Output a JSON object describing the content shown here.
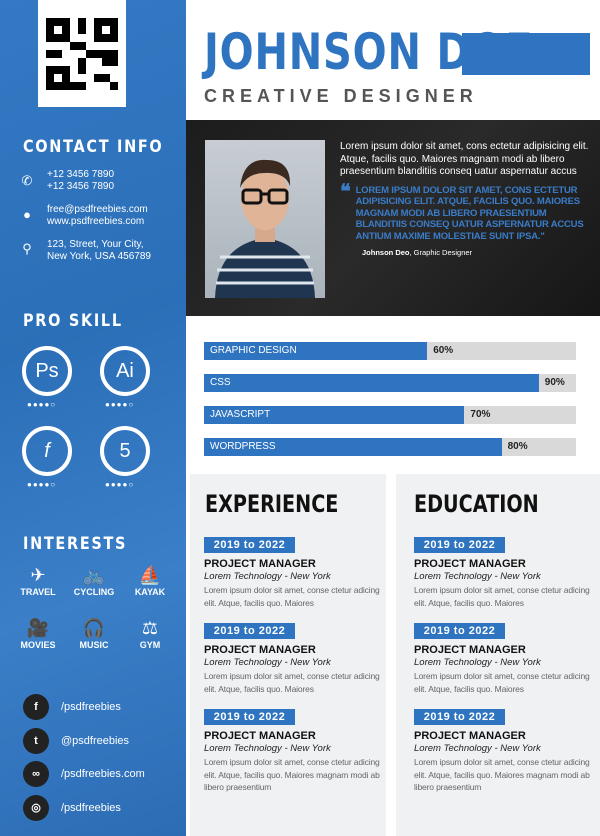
{
  "header": {
    "name": "JOHNSON DOE",
    "title": "CREATIVE DESIGNER"
  },
  "contact": {
    "heading": "CONTACT INFO",
    "phone1": "+12 3456 7890",
    "phone2": "+12 3456 7890",
    "email": "free@psdfreebies.com",
    "website": "www.psdfreebies.com",
    "address1": "123, Street, Your City,",
    "address2": "New York, USA 456789"
  },
  "pro_skill": {
    "heading": "PRO SKILL",
    "items": [
      {
        "icon": "photoshop-icon",
        "label": "Ps",
        "rating": 4,
        "max": 5
      },
      {
        "icon": "illustrator-icon",
        "label": "Ai",
        "rating": 4,
        "max": 5
      },
      {
        "icon": "flash-icon",
        "label": "f",
        "rating": 4,
        "max": 5
      },
      {
        "icon": "html5-icon",
        "label": "5",
        "rating": 4,
        "max": 5
      }
    ]
  },
  "interests": {
    "heading": "INTERESTS",
    "items": [
      {
        "icon": "plane-icon",
        "label": "TRAVEL"
      },
      {
        "icon": "bicycle-icon",
        "label": "CYCLING"
      },
      {
        "icon": "kayak-icon",
        "label": "KAYAK"
      },
      {
        "icon": "video-camera-icon",
        "label": "MOVIES"
      },
      {
        "icon": "headphones-icon",
        "label": "MUSIC"
      },
      {
        "icon": "dumbbell-icon",
        "label": "GYM"
      }
    ]
  },
  "social": [
    {
      "icon": "facebook-icon",
      "label": "/psdfreebies"
    },
    {
      "icon": "twitter-icon",
      "label": "@psdfreebies"
    },
    {
      "icon": "link-icon",
      "label": "/psdfreebies.com"
    },
    {
      "icon": "dribbble-icon",
      "label": "/psdfreebies"
    }
  ],
  "about": {
    "intro": "Lorem ipsum dolor sit amet, cons ectetur adipisicing elit. Atque, facilis quo. Maiores magnam modi ab libero praesentium blanditiis conseq uatur aspernatur accus",
    "quote": "LOREM IPSUM DOLOR SIT AMET, CONS ECTETUR ADIPISICING ELIT. ATQUE, FACILIS QUO. MAIORES MAGNAM MODI AB LIBERO PRAESENTIUM BLANDITIIS CONSEQ UATUR ASPERNATUR ACCUS ANTIUM MAXIME MOLESTIAE SUNT IPSA.\"",
    "sig_name": "Johnson Deo",
    "sig_role": ", Graphic Designer"
  },
  "skills": [
    {
      "label": "GRAPHIC DESIGN",
      "percent": 60,
      "text": "60%"
    },
    {
      "label": "CSS",
      "percent": 90,
      "text": "90%"
    },
    {
      "label": "JAVASCRIPT",
      "percent": 70,
      "text": "70%"
    },
    {
      "label": "WORDPRESS",
      "percent": 80,
      "text": "80%"
    }
  ],
  "experience": {
    "heading": "EXPERIENCE",
    "entries": [
      {
        "date": "2019 to 2022",
        "role": "PROJECT MANAGER",
        "company": "Lorem Technology - New York",
        "desc": "Lorem ipsum dolor sit amet, conse ctetur adicing elit. Atque, facilis quo. Maiores"
      },
      {
        "date": "2019 to 2022",
        "role": "PROJECT MANAGER",
        "company": "Lorem Technology - New York",
        "desc": "Lorem ipsum dolor sit amet, conse ctetur adicing elit. Atque, facilis quo. Maiores"
      },
      {
        "date": "2019 to 2022",
        "role": "PROJECT MANAGER",
        "company": "Lorem Technology - New York",
        "desc": "Lorem ipsum dolor sit amet, conse ctetur adicing elit. Atque, facilis quo. Maiores magnam modi ab libero praesentium"
      }
    ]
  },
  "education": {
    "heading": "EDUCATION",
    "entries": [
      {
        "date": "2019 to 2022",
        "role": "PROJECT MANAGER",
        "company": "Lorem Technology - New York",
        "desc": "Lorem ipsum dolor sit amet, conse ctetur adicing elit. Atque, facilis quo. Maiores"
      },
      {
        "date": "2019 to 2022",
        "role": "PROJECT MANAGER",
        "company": "Lorem Technology - New York",
        "desc": "Lorem ipsum dolor sit amet, conse ctetur adicing elit. Atque, facilis quo. Maiores"
      },
      {
        "date": "2019 to 2022",
        "role": "PROJECT MANAGER",
        "company": "Lorem Technology - New York",
        "desc": "Lorem ipsum dolor sit amet, conse ctetur adicing elit. Atque, facilis quo. Maiores magnam modi ab libero praesentium"
      }
    ]
  },
  "colors": {
    "accent": "#2e74c0",
    "dark": "#1e1e1e",
    "panel": "#f0f1f3"
  }
}
